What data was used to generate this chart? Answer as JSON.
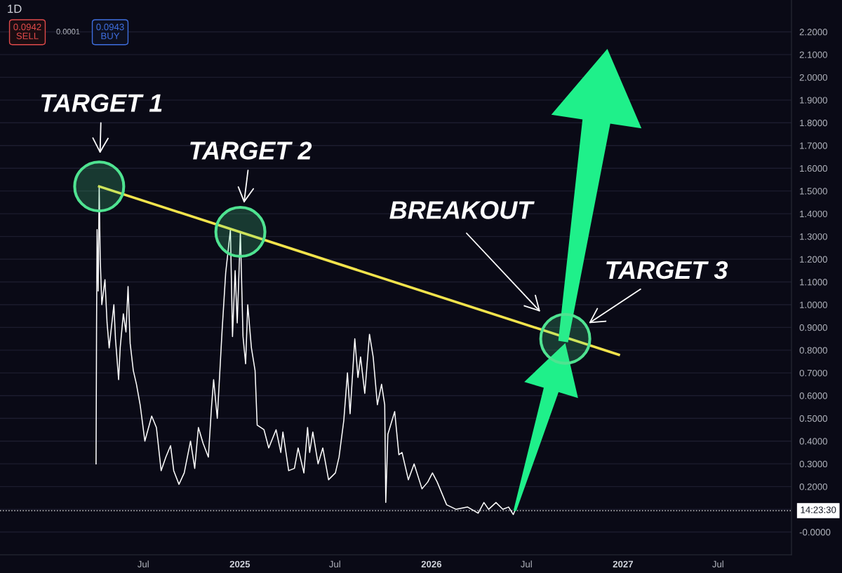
{
  "chart_data": {
    "type": "line",
    "title": "1D",
    "xlim": [
      "2023-10-02",
      "2027-11-18"
    ],
    "xticks": [
      {
        "value": "2024-07-01",
        "label": "Jul"
      },
      {
        "value": "2025-01-01",
        "label": "2025"
      },
      {
        "value": "2025-07-01",
        "label": "Jul"
      },
      {
        "value": "2026-01-01",
        "label": "2026"
      },
      {
        "value": "2026-07-01",
        "label": "Jul"
      },
      {
        "value": "2027-01-01",
        "label": "2027"
      },
      {
        "value": "2027-07-01",
        "label": "Jul"
      }
    ],
    "ylim": [
      -0.1,
      2.34
    ],
    "yticks": [
      {
        "value": 0,
        "label": "-0.0000"
      },
      {
        "value": 0.1,
        "label": null
      },
      {
        "value": 0.2,
        "label": "0.2000"
      },
      {
        "value": 0.3,
        "label": "0.3000"
      },
      {
        "value": 0.4,
        "label": "0.4000"
      },
      {
        "value": 0.5,
        "label": "0.5000"
      },
      {
        "value": 0.6,
        "label": "0.6000"
      },
      {
        "value": 0.7,
        "label": "0.7000"
      },
      {
        "value": 0.8,
        "label": "0.8000"
      },
      {
        "value": 0.9,
        "label": "0.9000"
      },
      {
        "value": 1.0,
        "label": "1.0000"
      },
      {
        "value": 1.1,
        "label": "1.1000"
      },
      {
        "value": 1.2,
        "label": "1.2000"
      },
      {
        "value": 1.3,
        "label": "1.3000"
      },
      {
        "value": 1.4,
        "label": "1.4000"
      },
      {
        "value": 1.5,
        "label": "1.5000"
      },
      {
        "value": 1.6,
        "label": "1.6000"
      },
      {
        "value": 1.7,
        "label": "1.7000"
      },
      {
        "value": 1.8,
        "label": "1.8000"
      },
      {
        "value": 1.9,
        "label": "1.9000"
      },
      {
        "value": 2.0,
        "label": "2.0000"
      },
      {
        "value": 2.1,
        "label": "2.1000"
      },
      {
        "value": 2.2,
        "label": "2.2000"
      }
    ],
    "grid": "y",
    "line_style": "solid",
    "series": [
      {
        "color": "#ffffff",
        "x": [
          "2024-04-02",
          "2024-04-03",
          "2024-04-04",
          "2024-04-06",
          "2024-04-08",
          "2024-04-10",
          "2024-04-13",
          "2024-04-19",
          "2024-04-23",
          "2024-04-27",
          "2024-05-06",
          "2024-05-09",
          "2024-05-15",
          "2024-05-18",
          "2024-05-24",
          "2024-05-29",
          "2024-06-02",
          "2024-06-06",
          "2024-06-12",
          "2024-06-18",
          "2024-06-25",
          "2024-07-04",
          "2024-07-17",
          "2024-07-26",
          "2024-08-04",
          "2024-08-13",
          "2024-08-22",
          "2024-08-28",
          "2024-09-07",
          "2024-09-17",
          "2024-09-29",
          "2024-10-07",
          "2024-10-14",
          "2024-10-23",
          "2024-11-02",
          "2024-11-08",
          "2024-11-12",
          "2024-11-19",
          "2024-11-28",
          "2024-12-05",
          "2024-12-14",
          "2024-12-18",
          "2024-12-23",
          "2024-12-27",
          "2025-01-02",
          "2025-01-07",
          "2025-01-12",
          "2025-01-16",
          "2025-01-23",
          "2025-01-30",
          "2025-02-03",
          "2025-02-16",
          "2025-02-25",
          "2025-03-11",
          "2025-03-20",
          "2025-03-24",
          "2025-04-04",
          "2025-04-15",
          "2025-04-22",
          "2025-05-03",
          "2025-05-10",
          "2025-05-14",
          "2025-05-20",
          "2025-05-30",
          "2025-06-08",
          "2025-06-19",
          "2025-07-02",
          "2025-07-09",
          "2025-07-18",
          "2025-07-25",
          "2025-07-30",
          "2025-08-08",
          "2025-08-14",
          "2025-08-19",
          "2025-08-27",
          "2025-09-05",
          "2025-09-12",
          "2025-09-20",
          "2025-09-28",
          "2025-10-04",
          "2025-10-06",
          "2025-10-10",
          "2025-10-23",
          "2025-10-31",
          "2025-11-06",
          "2025-11-18",
          "2025-11-29",
          "2025-12-14",
          "2025-12-25",
          "2026-01-03",
          "2026-01-12",
          "2026-01-30",
          "2026-02-17",
          "2026-03-11",
          "2026-03-31",
          "2026-04-11",
          "2026-04-20",
          "2026-05-04",
          "2026-05-17",
          "2026-05-28",
          "2026-06-06",
          "2026-06-09"
        ],
        "values": [
          0.3,
          0.92,
          1.33,
          1.06,
          1.52,
          1.2,
          1.0,
          1.11,
          0.92,
          0.81,
          1.0,
          0.85,
          0.67,
          0.81,
          0.96,
          0.88,
          1.08,
          0.83,
          0.71,
          0.65,
          0.56,
          0.4,
          0.51,
          0.46,
          0.27,
          0.33,
          0.38,
          0.27,
          0.21,
          0.26,
          0.4,
          0.28,
          0.46,
          0.39,
          0.33,
          0.55,
          0.67,
          0.5,
          0.88,
          1.14,
          1.33,
          0.86,
          1.15,
          0.92,
          1.32,
          0.86,
          0.74,
          1.0,
          0.81,
          0.71,
          0.47,
          0.45,
          0.37,
          0.45,
          0.35,
          0.44,
          0.27,
          0.28,
          0.37,
          0.26,
          0.46,
          0.35,
          0.44,
          0.3,
          0.37,
          0.23,
          0.26,
          0.33,
          0.49,
          0.7,
          0.52,
          0.85,
          0.68,
          0.77,
          0.61,
          0.87,
          0.77,
          0.56,
          0.65,
          0.56,
          0.13,
          0.43,
          0.53,
          0.34,
          0.35,
          0.23,
          0.3,
          0.19,
          0.22,
          0.26,
          0.22,
          0.12,
          0.1,
          0.11,
          0.083,
          0.13,
          0.1,
          0.13,
          0.1,
          0.11,
          0.077,
          0.094
        ]
      },
      {
        "type": "line",
        "color": "#f2e34c",
        "x": [
          "2024-04-08",
          "2026-12-24"
        ],
        "values": [
          1.52,
          0.78
        ]
      },
      {
        "type": "scatter",
        "color": "#4fe391",
        "marker": "circle",
        "x": [
          "2024-04-08",
          "2025-01-02",
          "2026-09-13"
        ],
        "values": [
          1.52,
          1.32,
          0.85
        ]
      }
    ],
    "ref_lines": [
      {
        "axis": "y",
        "value": 0.0942,
        "color": "#ffffff",
        "line_style": "dotted"
      }
    ],
    "annotations": [
      "0.0942\nSELL",
      "0.0001",
      "0.0943\nBUY",
      "14:23:30",
      {
        "text": "TARGET 1",
        "x": "2024-04-08",
        "y": 1.52
      },
      {
        "text": "TARGET 2",
        "x": "2025-01-02",
        "y": 1.32
      },
      "BREAKOUT",
      {
        "text": "TARGET 3",
        "x": "2026-09-13",
        "y": 0.85
      }
    ]
  }
}
